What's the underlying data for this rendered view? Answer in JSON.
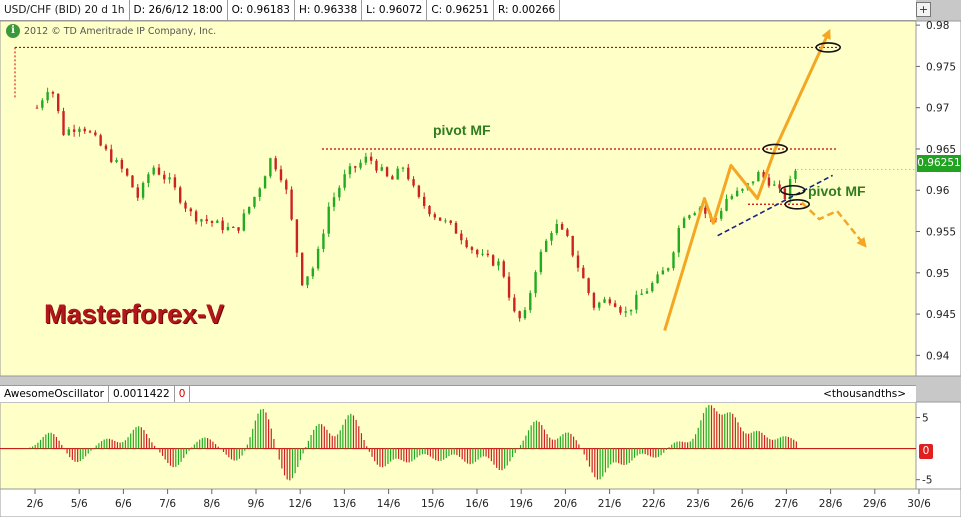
{
  "header": {
    "symbol": "USD/CHF (BID) 20 d 1h",
    "date": "D: 26/6/12 18:00",
    "open": "O: 0.96183",
    "high": "H: 0.96338",
    "low": "L: 0.96072",
    "close": "C: 0.96251",
    "range": "R: 0.00266"
  },
  "copyright": "2012 © TD Ameritrade IP Company, Inc.",
  "info_icon_glyph": "i",
  "plus_glyph": "+",
  "brand": "Masterforex-V",
  "pivot_label_1": "pivot MF",
  "pivot_label_2": "pivot MF",
  "current_price": "0.96251",
  "indicator": {
    "name": "AwesomeOscillator",
    "value": "0.0011422",
    "value2": "0",
    "units": "<thousandths>",
    "zero_badge": "0"
  },
  "colors": {
    "background": "#ffffc8",
    "up": "#22aa22",
    "down": "#cc2222",
    "arrow": "#f5a623",
    "trend": "#1a237e",
    "pivot": "#d00000"
  },
  "chart_data": [
    {
      "type": "candlestick",
      "title": "USD/CHF (BID) 20 d 1h",
      "ylim": [
        0.9375,
        0.9805
      ],
      "y_ticks": [
        "0.98",
        "0.975",
        "0.97",
        "0.965",
        "0.96",
        "0.955",
        "0.95",
        "0.945",
        "0.94"
      ],
      "x_tick_labels": [
        "2/6",
        "5/6",
        "6/6",
        "7/6",
        "8/6",
        "9/6",
        "12/6",
        "13/6",
        "14/6",
        "15/6",
        "16/6",
        "19/6",
        "20/6",
        "21/6",
        "22/6",
        "23/6",
        "26/6",
        "27/6",
        "28/6",
        "29/6",
        "30/6"
      ],
      "close_path": [
        {
          "x": 0.0,
          "y": 0.97
        },
        {
          "x": 0.3,
          "y": 0.973
        },
        {
          "x": 0.6,
          "y": 0.967
        },
        {
          "x": 1.0,
          "y": 0.968
        },
        {
          "x": 1.5,
          "y": 0.965
        },
        {
          "x": 2.0,
          "y": 0.962
        },
        {
          "x": 2.3,
          "y": 0.959
        },
        {
          "x": 2.6,
          "y": 0.963
        },
        {
          "x": 3.0,
          "y": 0.961
        },
        {
          "x": 3.5,
          "y": 0.957
        },
        {
          "x": 4.0,
          "y": 0.956
        },
        {
          "x": 4.5,
          "y": 0.955
        },
        {
          "x": 5.0,
          "y": 0.96
        },
        {
          "x": 5.3,
          "y": 0.964
        },
        {
          "x": 5.6,
          "y": 0.961
        },
        {
          "x": 6.0,
          "y": 0.949
        },
        {
          "x": 6.3,
          "y": 0.951
        },
        {
          "x": 6.6,
          "y": 0.958
        },
        {
          "x": 7.0,
          "y": 0.962
        },
        {
          "x": 7.5,
          "y": 0.964
        },
        {
          "x": 8.0,
          "y": 0.961
        },
        {
          "x": 8.3,
          "y": 0.963
        },
        {
          "x": 8.6,
          "y": 0.959
        },
        {
          "x": 9.0,
          "y": 0.957
        },
        {
          "x": 9.5,
          "y": 0.955
        },
        {
          "x": 10.0,
          "y": 0.952
        },
        {
          "x": 10.5,
          "y": 0.951
        },
        {
          "x": 10.8,
          "y": 0.945
        },
        {
          "x": 11.0,
          "y": 0.944
        },
        {
          "x": 11.3,
          "y": 0.951
        },
        {
          "x": 11.7,
          "y": 0.956
        },
        {
          "x": 12.0,
          "y": 0.954
        },
        {
          "x": 12.3,
          "y": 0.95
        },
        {
          "x": 12.6,
          "y": 0.946
        },
        {
          "x": 13.0,
          "y": 0.947
        },
        {
          "x": 13.3,
          "y": 0.945
        },
        {
          "x": 13.6,
          "y": 0.947
        },
        {
          "x": 14.0,
          "y": 0.949
        },
        {
          "x": 14.3,
          "y": 0.951
        },
        {
          "x": 14.6,
          "y": 0.957
        },
        {
          "x": 15.0,
          "y": 0.958
        },
        {
          "x": 15.3,
          "y": 0.956
        },
        {
          "x": 15.6,
          "y": 0.959
        },
        {
          "x": 16.0,
          "y": 0.96
        },
        {
          "x": 16.3,
          "y": 0.962
        },
        {
          "x": 16.6,
          "y": 0.961
        },
        {
          "x": 16.9,
          "y": 0.959
        },
        {
          "x": 17.2,
          "y": 0.963
        }
      ],
      "levels": [
        {
          "label": "pivot MF",
          "y": 0.9773
        },
        {
          "label": "pivot MF",
          "y": 0.965
        },
        {
          "label": "pivot MF",
          "y": 0.9583
        }
      ],
      "forecast_up": [
        {
          "x": 14.2,
          "y": 0.943
        },
        {
          "x": 15.1,
          "y": 0.959
        },
        {
          "x": 15.3,
          "y": 0.956
        },
        {
          "x": 15.7,
          "y": 0.963
        },
        {
          "x": 16.3,
          "y": 0.959
        },
        {
          "x": 16.7,
          "y": 0.965
        },
        {
          "x": 17.9,
          "y": 0.979
        }
      ],
      "forecast_down": [
        {
          "x": 17.3,
          "y": 0.9585
        },
        {
          "x": 17.7,
          "y": 0.9565
        },
        {
          "x": 18.1,
          "y": 0.9575
        },
        {
          "x": 18.7,
          "y": 0.9535
        }
      ],
      "trendline": [
        {
          "x": 15.4,
          "y": 0.9545
        },
        {
          "x": 18.0,
          "y": 0.9618
        }
      ],
      "current_price": 0.96251
    },
    {
      "type": "bar",
      "title": "AwesomeOscillator",
      "units": "<thousandths>",
      "ylim": [
        -6.5,
        7.5
      ],
      "y_ticks": [
        "5",
        "0",
        "-5"
      ],
      "value": 0.0011422,
      "waves": [
        {
          "c": 0.3,
          "a": 2.6
        },
        {
          "c": 0.9,
          "a": -2.2
        },
        {
          "c": 1.6,
          "a": 1.6
        },
        {
          "c": 2.3,
          "a": 3.6
        },
        {
          "c": 3.1,
          "a": -3.0
        },
        {
          "c": 3.8,
          "a": 1.8
        },
        {
          "c": 4.5,
          "a": -2.0
        },
        {
          "c": 5.1,
          "a": 6.5
        },
        {
          "c": 5.7,
          "a": -5.2
        },
        {
          "c": 6.4,
          "a": 4.0
        },
        {
          "c": 7.1,
          "a": 5.6
        },
        {
          "c": 7.8,
          "a": -3.0
        },
        {
          "c": 8.4,
          "a": -2.2
        },
        {
          "c": 9.1,
          "a": -2.0
        },
        {
          "c": 9.8,
          "a": -2.5
        },
        {
          "c": 10.5,
          "a": -3.5
        },
        {
          "c": 11.3,
          "a": 4.5
        },
        {
          "c": 12.0,
          "a": 2.6
        },
        {
          "c": 12.7,
          "a": -5.0
        },
        {
          "c": 13.3,
          "a": -2.6
        },
        {
          "c": 14.0,
          "a": -1.5
        },
        {
          "c": 14.5,
          "a": 1.2
        },
        {
          "c": 15.2,
          "a": 6.8
        },
        {
          "c": 15.7,
          "a": 5.5
        },
        {
          "c": 16.3,
          "a": 2.8
        },
        {
          "c": 16.9,
          "a": 1.8
        },
        {
          "c": 17.2,
          "a": 0.5
        }
      ]
    }
  ]
}
